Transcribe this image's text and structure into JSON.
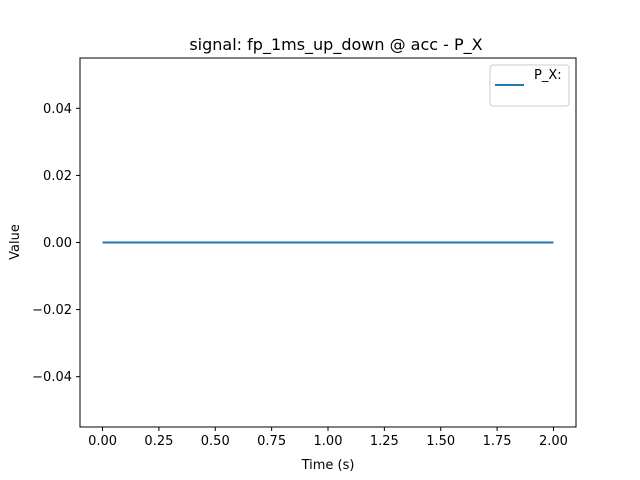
{
  "chart_data": {
    "type": "line",
    "title": "signal: fp_1ms_up_down @ acc - P_X",
    "xlabel": "Time (s)",
    "ylabel": "Value",
    "xlim": [
      -0.1,
      2.1
    ],
    "ylim": [
      -0.055,
      0.055
    ],
    "xticks": [
      0.0,
      0.25,
      0.5,
      0.75,
      1.0,
      1.25,
      1.5,
      1.75,
      2.0
    ],
    "xtick_labels": [
      "0.00",
      "0.25",
      "0.50",
      "0.75",
      "1.00",
      "1.25",
      "1.50",
      "1.75",
      "2.00"
    ],
    "yticks": [
      -0.04,
      -0.02,
      0.0,
      0.02,
      0.04
    ],
    "ytick_labels": [
      "−0.04",
      "−0.02",
      "0.00",
      "0.02",
      "0.04"
    ],
    "grid": false,
    "legend_position": "top-right",
    "series": [
      {
        "name": "P_X:",
        "color": "#1f77b4",
        "x": [
          0.0,
          2.0
        ],
        "y": [
          0.0,
          0.0
        ]
      }
    ]
  }
}
